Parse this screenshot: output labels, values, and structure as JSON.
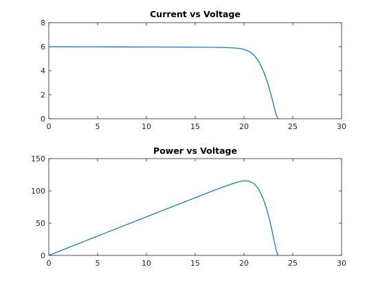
{
  "chart_data": [
    {
      "type": "line",
      "title": "Current vs Voltage",
      "xlabel": "",
      "ylabel": "",
      "xlim": [
        0,
        30
      ],
      "ylim": [
        0,
        8
      ],
      "xticks": [
        "0",
        "5",
        "10",
        "15",
        "20",
        "25",
        "30"
      ],
      "yticks": [
        "0",
        "2",
        "4",
        "6",
        "8"
      ],
      "grid": false,
      "color": "#0072BD",
      "series": [
        {
          "x": [
            0,
            2,
            4,
            6,
            8,
            10,
            12,
            14,
            16,
            17,
            18,
            19,
            19.5,
            20,
            20.5,
            21,
            21.5,
            22,
            22.3,
            22.6,
            22.9,
            23.1,
            23.3,
            23.5
          ],
          "y": [
            6.0,
            5.995,
            5.99,
            5.985,
            5.98,
            5.975,
            5.97,
            5.965,
            5.955,
            5.945,
            5.93,
            5.89,
            5.86,
            5.78,
            5.62,
            5.32,
            4.8,
            3.95,
            3.28,
            2.5,
            1.6,
            0.95,
            0.35,
            0.0
          ]
        }
      ]
    },
    {
      "type": "line",
      "title": "Power vs Voltage",
      "xlabel": "",
      "ylabel": "",
      "xlim": [
        0,
        30
      ],
      "ylim": [
        0,
        150
      ],
      "xticks": [
        "0",
        "5",
        "10",
        "15",
        "20",
        "25",
        "30"
      ],
      "yticks": [
        "0",
        "50",
        "100",
        "150"
      ],
      "grid": false,
      "color": "#0072BD",
      "series": [
        {
          "x": [
            0,
            2,
            4,
            6,
            8,
            10,
            12,
            14,
            16,
            17,
            18,
            19,
            19.5,
            20,
            20.5,
            21,
            21.5,
            22,
            22.3,
            22.6,
            22.9,
            23.1,
            23.3,
            23.5
          ],
          "y": [
            0,
            12.0,
            24.0,
            35.9,
            47.8,
            59.8,
            71.6,
            83.5,
            95.3,
            101.1,
            106.7,
            112.0,
            114.3,
            115.6,
            115.2,
            111.7,
            103.2,
            86.9,
            73.1,
            56.5,
            36.6,
            21.9,
            8.2,
            0.0
          ]
        }
      ]
    }
  ]
}
